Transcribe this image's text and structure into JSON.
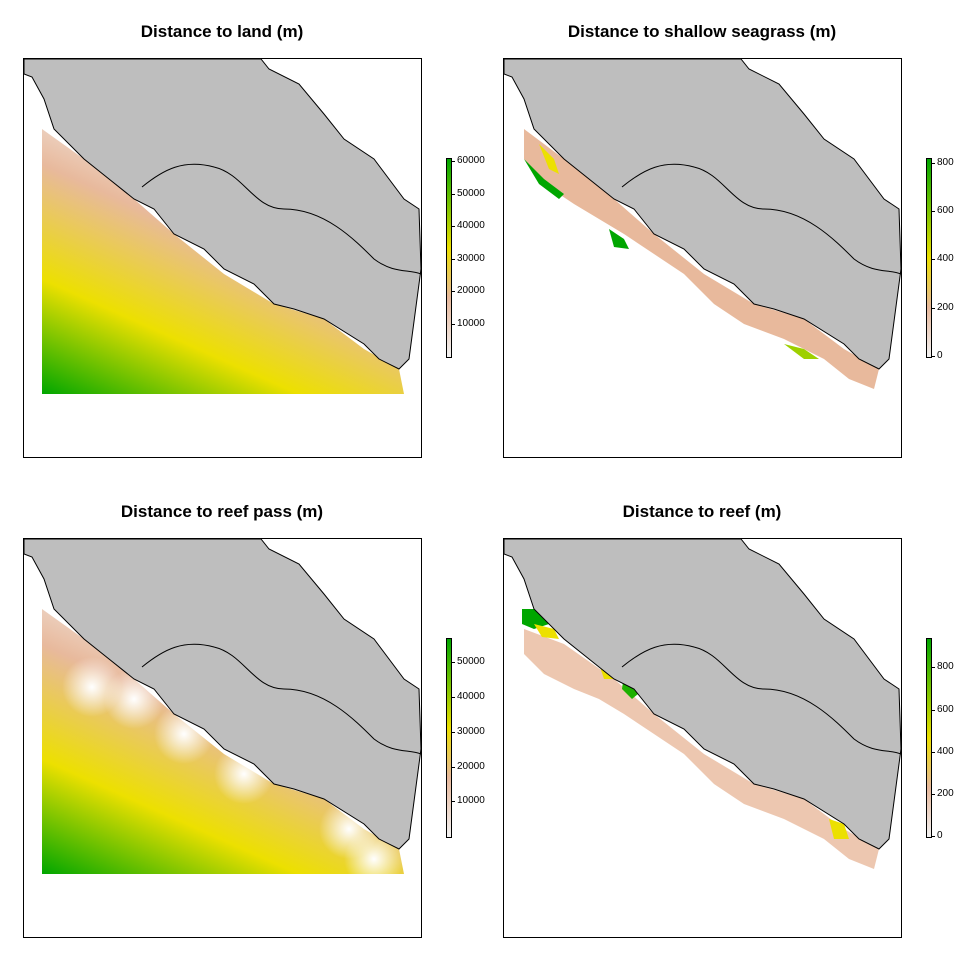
{
  "panels": [
    {
      "title": "Distance to land (m)",
      "variant": "land",
      "legend_ticks": [
        "10000",
        "20000",
        "30000",
        "40000",
        "50000",
        "60000"
      ],
      "legend_max": 61000,
      "legend_top_value": 61000
    },
    {
      "title": "Distance to shallow seagrass (m)",
      "variant": "seagrass",
      "legend_ticks": [
        "0",
        "200",
        "400",
        "600",
        "800"
      ],
      "legend_max": 820,
      "legend_min": 0
    },
    {
      "title": "Distance to reef pass (m)",
      "variant": "reefpass",
      "legend_ticks": [
        "10000",
        "20000",
        "30000",
        "40000",
        "50000"
      ],
      "legend_max": 57000
    },
    {
      "title": "Distance to reef (m)",
      "variant": "reef",
      "legend_ticks": [
        "0",
        "200",
        "400",
        "600",
        "800"
      ],
      "legend_max": 940,
      "legend_min": 0
    }
  ],
  "colors": {
    "land": "#bebebe",
    "low": "#f2f2f2",
    "mid1": "#e8b99c",
    "mid2": "#ece000",
    "high": "#00a600"
  }
}
